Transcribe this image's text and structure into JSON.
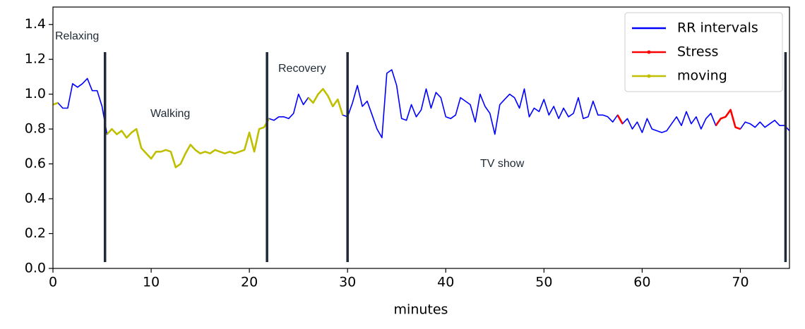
{
  "chart_data": {
    "type": "line",
    "x_label": "minutes",
    "xlim": [
      0,
      75
    ],
    "xticks": [
      0,
      10,
      20,
      30,
      40,
      50,
      60,
      70
    ],
    "ylim": [
      0,
      1.5
    ],
    "yticks": [
      {
        "value": 0,
        "label": "0.0"
      },
      0.2,
      0.4,
      0.6,
      0.8,
      {
        "value": 1,
        "label": "1.0"
      },
      1.2,
      1.4
    ],
    "legend": "upper right",
    "annotations": [
      "Relaxing",
      "Walking",
      "Recovery",
      "TV show"
    ],
    "phase_boundaries": [
      5.3,
      21.8,
      30.0,
      74.6
    ],
    "x": [
      0,
      0.5,
      1,
      1.5,
      2,
      2.5,
      3,
      3.5,
      4,
      4.5,
      5,
      5.5,
      6,
      6.5,
      7,
      7.5,
      8,
      8.5,
      9,
      9.5,
      10,
      10.5,
      11,
      11.5,
      12,
      12.5,
      13,
      13.5,
      14,
      14.5,
      15,
      15.5,
      16,
      16.5,
      17,
      17.5,
      18,
      18.5,
      19,
      19.5,
      20,
      20.5,
      21,
      21.5,
      22,
      22.5,
      23,
      23.5,
      24,
      24.5,
      25,
      25.5,
      26,
      26.5,
      27,
      27.5,
      28,
      28.5,
      29,
      29.5,
      30,
      30.5,
      31,
      31.5,
      32,
      32.5,
      33,
      33.5,
      34,
      34.5,
      35,
      35.5,
      36,
      36.5,
      37,
      37.5,
      38,
      38.5,
      39,
      39.5,
      40,
      40.5,
      41,
      41.5,
      42,
      42.5,
      43,
      43.5,
      44,
      44.5,
      45,
      45.5,
      46,
      46.5,
      47,
      47.5,
      48,
      48.5,
      49,
      49.5,
      50,
      50.5,
      51,
      51.5,
      52,
      52.5,
      53,
      53.5,
      54,
      54.5,
      55,
      55.5,
      56,
      56.5,
      57,
      57.5,
      58,
      58.5,
      59,
      59.5,
      60,
      60.5,
      61,
      61.5,
      62,
      62.5,
      63,
      63.5,
      64,
      64.5,
      65,
      65.5,
      66,
      66.5,
      67,
      67.5,
      68,
      68.5,
      69,
      69.5,
      70,
      70.5,
      71,
      71.5,
      72,
      72.5,
      73,
      73.5,
      74,
      74.5,
      75
    ],
    "series": [
      {
        "name": "RR intervals",
        "color": "#0000ff",
        "values": [
          0.94,
          0.95,
          0.92,
          0.92,
          1.06,
          1.04,
          1.06,
          1.09,
          1.02,
          1.02,
          0.93,
          0.77,
          0.8,
          0.77,
          0.79,
          0.75,
          0.78,
          0.8,
          0.69,
          0.66,
          0.63,
          0.67,
          0.67,
          0.68,
          0.67,
          0.58,
          0.6,
          0.66,
          0.71,
          0.68,
          0.66,
          0.67,
          0.66,
          0.68,
          0.67,
          0.66,
          0.67,
          0.66,
          0.67,
          0.68,
          0.78,
          0.67,
          0.8,
          0.81,
          0.86,
          0.85,
          0.87,
          0.87,
          0.86,
          0.89,
          1.0,
          0.94,
          0.98,
          0.95,
          1.0,
          1.03,
          0.99,
          0.93,
          0.97,
          0.88,
          0.87,
          0.95,
          1.05,
          0.93,
          0.96,
          0.88,
          0.8,
          0.75,
          1.12,
          1.14,
          1.05,
          0.86,
          0.85,
          0.94,
          0.87,
          0.91,
          1.03,
          0.92,
          1.01,
          0.98,
          0.87,
          0.86,
          0.88,
          0.98,
          0.96,
          0.94,
          0.84,
          1.0,
          0.93,
          0.89,
          0.77,
          0.94,
          0.97,
          1.0,
          0.98,
          0.92,
          1.03,
          0.87,
          0.92,
          0.9,
          0.97,
          0.88,
          0.93,
          0.86,
          0.92,
          0.87,
          0.89,
          0.98,
          0.86,
          0.87,
          0.96,
          0.88,
          0.88,
          0.87,
          0.84,
          0.88,
          0.83,
          0.86,
          0.8,
          0.84,
          0.78,
          0.86,
          0.8,
          0.79,
          0.78,
          0.79,
          0.83,
          0.87,
          0.82,
          0.9,
          0.83,
          0.87,
          0.8,
          0.86,
          0.89,
          0.82,
          0.86,
          0.87,
          0.91,
          0.81,
          0.8,
          0.84,
          0.83,
          0.81,
          0.84,
          0.81,
          0.83,
          0.85,
          0.82,
          0.82,
          0.79
        ]
      },
      {
        "name": "Stress",
        "color": "#ff0000",
        "values": [
          null,
          null,
          null,
          null,
          null,
          null,
          null,
          null,
          null,
          null,
          null,
          null,
          null,
          null,
          null,
          null,
          null,
          null,
          null,
          null,
          null,
          null,
          null,
          null,
          null,
          null,
          null,
          null,
          null,
          null,
          null,
          null,
          null,
          null,
          null,
          null,
          null,
          null,
          null,
          null,
          null,
          null,
          null,
          null,
          null,
          null,
          null,
          null,
          null,
          null,
          null,
          null,
          null,
          null,
          null,
          null,
          null,
          null,
          null,
          null,
          null,
          null,
          null,
          null,
          null,
          null,
          null,
          null,
          null,
          null,
          null,
          null,
          null,
          null,
          null,
          null,
          null,
          null,
          null,
          null,
          null,
          null,
          null,
          null,
          null,
          null,
          null,
          null,
          null,
          null,
          null,
          null,
          null,
          null,
          null,
          null,
          null,
          null,
          null,
          null,
          null,
          null,
          null,
          null,
          null,
          null,
          null,
          null,
          null,
          null,
          null,
          null,
          null,
          null,
          null,
          0.88,
          0.83,
          null,
          null,
          null,
          null,
          null,
          null,
          null,
          null,
          null,
          null,
          null,
          null,
          null,
          null,
          null,
          null,
          null,
          null,
          0.82,
          0.86,
          0.87,
          0.91,
          0.81,
          0.8,
          null,
          null,
          null,
          null,
          null,
          null,
          null,
          null,
          null,
          null
        ]
      },
      {
        "name": "moving",
        "color": "#bfbf00",
        "values": [
          0.94,
          0.95,
          null,
          null,
          null,
          null,
          null,
          null,
          null,
          null,
          null,
          0.77,
          0.8,
          0.77,
          0.79,
          0.75,
          0.78,
          0.8,
          0.69,
          0.66,
          0.63,
          0.67,
          0.67,
          0.68,
          0.67,
          0.58,
          0.6,
          0.66,
          0.71,
          0.68,
          0.66,
          0.67,
          0.66,
          0.68,
          0.67,
          0.66,
          0.67,
          0.66,
          0.67,
          0.68,
          0.78,
          0.67,
          0.8,
          0.81,
          0.86,
          null,
          null,
          null,
          null,
          null,
          null,
          null,
          0.98,
          0.95,
          1.0,
          1.03,
          0.99,
          0.93,
          0.97,
          0.88,
          null,
          null,
          null,
          null,
          null,
          null,
          null,
          null,
          null,
          null,
          null,
          null,
          null,
          null,
          null,
          null,
          null,
          null,
          null,
          null,
          null,
          null,
          null,
          null,
          null,
          null,
          null,
          null,
          null,
          null,
          null,
          null,
          null,
          null,
          null,
          null,
          null,
          null,
          null,
          null,
          null,
          null,
          null,
          null,
          null,
          null,
          null,
          null,
          null,
          null,
          null,
          null,
          null,
          null,
          null,
          null,
          null,
          null,
          null,
          null,
          null,
          null,
          null,
          null,
          null,
          null,
          null,
          null,
          null,
          null,
          null,
          null,
          null,
          null,
          null,
          null,
          null,
          null,
          null,
          null,
          null,
          null,
          null,
          null,
          null,
          null,
          null,
          null,
          null,
          null,
          null
        ]
      }
    ]
  }
}
